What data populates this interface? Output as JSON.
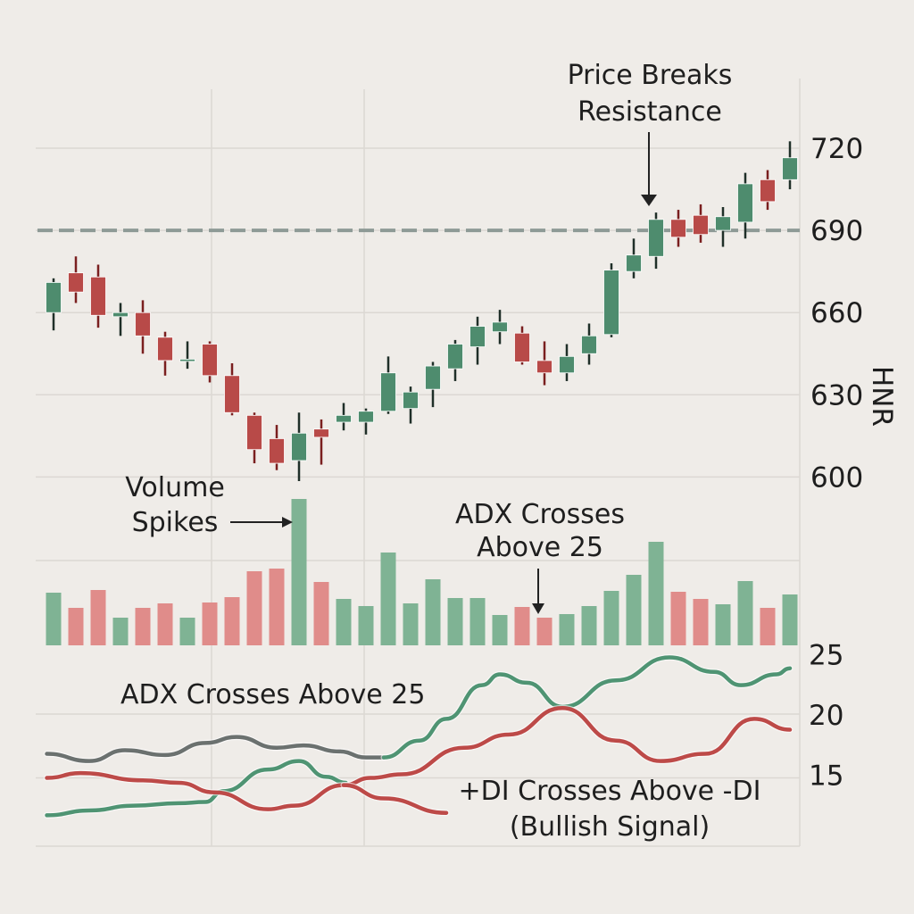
{
  "chart_data": [
    {
      "type": "candlestick",
      "ylabel": "HNR",
      "yticks": [
        720,
        690,
        660,
        630,
        600
      ],
      "ylim": [
        590,
        735
      ],
      "grid": true,
      "colors": {
        "up": "#4e8c6e",
        "down": "#b84a48",
        "resistance": "#8e9a96"
      },
      "resistance_level": 690,
      "candles": [
        {
          "o": 660,
          "h": 672.5,
          "l": 653.5,
          "c": 671
        },
        {
          "o": 674.5,
          "h": 680.5,
          "l": 663.5,
          "c": 667.5
        },
        {
          "o": 673,
          "h": 677.5,
          "l": 654.5,
          "c": 659
        },
        {
          "o": 658.5,
          "h": 663.5,
          "l": 651.5,
          "c": 660
        },
        {
          "o": 660,
          "h": 664.5,
          "l": 645,
          "c": 651.5
        },
        {
          "o": 651,
          "h": 653,
          "l": 637,
          "c": 642.5
        },
        {
          "o": 642.5,
          "h": 649.5,
          "l": 639.5,
          "c": 643
        },
        {
          "o": 648.5,
          "h": 649.5,
          "l": 634.5,
          "c": 637
        },
        {
          "o": 637,
          "h": 641.5,
          "l": 622.5,
          "c": 623.5
        },
        {
          "o": 622.5,
          "h": 623.5,
          "l": 605,
          "c": 610
        },
        {
          "o": 614,
          "h": 619,
          "l": 602.5,
          "c": 605
        },
        {
          "o": 606,
          "h": 623.5,
          "l": 598.5,
          "c": 616
        },
        {
          "o": 617.5,
          "h": 621,
          "l": 604.5,
          "c": 614.5
        },
        {
          "o": 620,
          "h": 627,
          "l": 617,
          "c": 622.5
        },
        {
          "o": 620,
          "h": 625,
          "l": 615.5,
          "c": 624
        },
        {
          "o": 624,
          "h": 644,
          "l": 623,
          "c": 638
        },
        {
          "o": 625,
          "h": 633,
          "l": 619.5,
          "c": 631
        },
        {
          "o": 632,
          "h": 642,
          "l": 625.5,
          "c": 640.5
        },
        {
          "o": 639.5,
          "h": 650,
          "l": 635,
          "c": 648.5
        },
        {
          "o": 647.5,
          "h": 658.5,
          "l": 641,
          "c": 655
        },
        {
          "o": 653,
          "h": 661,
          "l": 648.5,
          "c": 656.5
        },
        {
          "o": 652.5,
          "h": 655,
          "l": 641,
          "c": 642
        },
        {
          "o": 642.5,
          "h": 649.5,
          "l": 633.5,
          "c": 638
        },
        {
          "o": 638,
          "h": 648.5,
          "l": 635,
          "c": 644
        },
        {
          "o": 645,
          "h": 656,
          "l": 641,
          "c": 651.5
        },
        {
          "o": 652,
          "h": 678,
          "l": 651,
          "c": 675.5
        },
        {
          "o": 675,
          "h": 687,
          "l": 672.5,
          "c": 681
        },
        {
          "o": 680.5,
          "h": 696.5,
          "l": 676,
          "c": 694
        },
        {
          "o": 694,
          "h": 697.5,
          "l": 684,
          "c": 687.5
        },
        {
          "o": 695.5,
          "h": 699.5,
          "l": 685.5,
          "c": 688.5
        },
        {
          "o": 690,
          "h": 698.5,
          "l": 684,
          "c": 695
        },
        {
          "o": 693,
          "h": 711,
          "l": 687,
          "c": 707
        },
        {
          "o": 708.5,
          "h": 712,
          "l": 697.5,
          "c": 700.5
        },
        {
          "o": 708.5,
          "h": 722.5,
          "l": 705,
          "c": 716.5
        }
      ]
    },
    {
      "type": "bar",
      "colors": {
        "up": "#7fb394",
        "down": "#e08c8a"
      },
      "values": [
        59,
        42,
        62,
        31,
        42,
        47,
        31,
        48,
        54,
        83,
        86,
        164,
        71,
        52,
        44,
        104,
        47,
        74,
        53,
        53,
        34,
        43,
        31,
        35,
        44,
        61,
        79,
        116,
        60,
        52,
        46,
        72,
        42,
        57
      ],
      "direction": [
        "up",
        "down",
        "down",
        "up",
        "down",
        "down",
        "up",
        "down",
        "down",
        "down",
        "down",
        "up",
        "down",
        "up",
        "up",
        "up",
        "up",
        "up",
        "up",
        "up",
        "up",
        "down",
        "down",
        "up",
        "up",
        "up",
        "up",
        "up",
        "down",
        "down",
        "up",
        "up",
        "down",
        "up"
      ]
    },
    {
      "type": "line",
      "yticks": [
        25,
        20,
        15
      ],
      "ylim": [
        10.5,
        26
      ],
      "grid": true,
      "series": [
        {
          "color": "#6b716f",
          "x": [
            -0.3,
            1.6,
            3.2,
            5,
            6.8,
            8.2,
            10,
            11.2,
            12.8,
            14,
            14.8
          ],
          "y": [
            16.7,
            16.1,
            17,
            16.6,
            17.6,
            18.1,
            17.2,
            17.4,
            16.9,
            16.4,
            16.4
          ]
        },
        {
          "color": "#4f9473",
          "x": [
            14.8,
            16.4,
            17.6,
            19.2,
            20,
            21.2,
            22.8,
            25.2,
            27.6,
            29.6,
            30.8,
            32.4,
            33
          ],
          "y": [
            16.4,
            17.8,
            19.6,
            22.4,
            23.3,
            22.6,
            20.6,
            22.8,
            24.7,
            23.5,
            22.4,
            23.3,
            23.8
          ]
        },
        {
          "color": "#4f9473",
          "x": [
            -0.3,
            1.6,
            3.6,
            5.6,
            6.8,
            7.6,
            9.6,
            11,
            12.2,
            13.1
          ],
          "y": [
            11.6,
            12,
            12.4,
            12.6,
            12.7,
            13.6,
            15.4,
            16.1,
            14.8,
            14.3
          ]
        },
        {
          "color": "#bd4a48",
          "x": [
            -0.3,
            1.2,
            4,
            5.6,
            7.2,
            9.6,
            10.8,
            13,
            14.2,
            15.6,
            18.4,
            20.4,
            22.8,
            25.2,
            27.2,
            29.2,
            31.4,
            33
          ],
          "y": [
            14.7,
            15.1,
            14.5,
            14.3,
            13.5,
            12.1,
            12.4,
            14.1,
            14.7,
            15,
            17.2,
            18.3,
            20.5,
            17.8,
            16.1,
            16.7,
            19.6,
            18.7
          ]
        },
        {
          "color": "#bd4a48",
          "x": [
            13,
            14.8,
            17.6
          ],
          "y": [
            14.1,
            13,
            11.8
          ]
        }
      ]
    }
  ],
  "annotations": {
    "price_breaks": [
      "Price Breaks",
      "Resistance"
    ],
    "volume_spikes": [
      "Volume",
      "Spikes"
    ],
    "adx_crosses_upper": [
      "ADX Crosses",
      "Above 25"
    ],
    "adx_crosses_lower": "ADX Crosses Above 25",
    "di_cross": [
      "+DI Crosses Above -DI",
      "(Bullish Signal)"
    ]
  }
}
